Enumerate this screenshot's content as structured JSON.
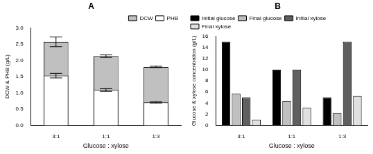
{
  "chart_data": [
    {
      "type": "bar",
      "title": "A",
      "x_label": "Glucose : xylose",
      "y_label": "DCW & PHB (g/L)",
      "categories": [
        "3:1",
        "1:1",
        "1:3"
      ],
      "series": [
        {
          "name": "DCW",
          "color": "#c0c0c0",
          "values": [
            2.57,
            2.13,
            1.8
          ],
          "errors": [
            0.15,
            0.04,
            0.02
          ]
        },
        {
          "name": "PHB",
          "color": "#ffffff",
          "values": [
            1.53,
            1.09,
            0.71
          ],
          "errors": [
            0.07,
            0.04,
            0.02
          ]
        }
      ],
      "ylim": [
        0,
        3.0
      ],
      "yticks": [
        {
          "value": 0,
          "label": "0.0"
        },
        0.5,
        {
          "value": 1,
          "label": "1.0"
        },
        1.5,
        {
          "value": 2,
          "label": "2.0"
        },
        2.5,
        {
          "value": 3,
          "label": "3.0"
        }
      ],
      "grid": false,
      "legend": "upper right"
    },
    {
      "type": "bar",
      "title": "B",
      "x_label": "Glucose : xylose",
      "y_label": "Glucose & xylose concentration (g/L)",
      "categories": [
        "3:1",
        "1:1",
        "1:3"
      ],
      "series": [
        {
          "name": "Initial glucose",
          "color": "#000000",
          "values": [
            15,
            10,
            5
          ]
        },
        {
          "name": "Final glucose",
          "color": "#c0c0c0",
          "values": [
            5.7,
            4.4,
            2.2
          ]
        },
        {
          "name": "Initial xylose",
          "color": "#606060",
          "values": [
            5,
            10,
            15
          ]
        },
        {
          "name": "Final xylose",
          "color": "#e0e0e0",
          "values": [
            1.0,
            3.2,
            5.3
          ]
        }
      ],
      "ylim": [
        0,
        16
      ],
      "yticks": [
        0,
        2,
        4,
        6,
        8,
        10,
        12,
        14,
        16
      ],
      "grid": false,
      "legend": "upper left"
    }
  ]
}
